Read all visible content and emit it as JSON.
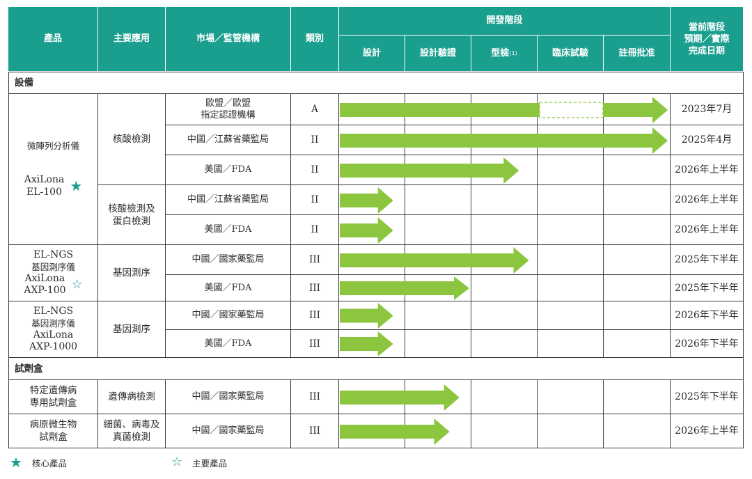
{
  "colors": {
    "header_bg": "#1a9e8e",
    "arrow": "#8cc63f",
    "star": "#1a9e8e",
    "text": "#2b2b2b"
  },
  "header": {
    "product": "產品",
    "application": "主要應用",
    "market": "市場／監管機構",
    "category": "類別",
    "dev_stage": "開發階段",
    "stages": [
      "設計",
      "設計驗證",
      "型檢",
      "臨床試驗",
      "註冊批准"
    ],
    "type_check_note": "(1)",
    "current_stage": "當前階段\n預期／實際\n完成日期"
  },
  "sections": {
    "equipment": "設備",
    "reagents": "試劑盒"
  },
  "products": {
    "p1_line1": "微陣列分析儀",
    "p1_line2": "AxiLona\nEL-100",
    "p1_star": "filled-star",
    "p2_name": "EL-NGS",
    "p2_sub": "基因測序儀",
    "p2_model": "AxiLona\nAXP-100",
    "p2_star": "outline-star",
    "p3_name": "EL-NGS",
    "p3_sub": "基因測序儀",
    "p3_model": "AxiLona\nAXP-1000",
    "p4": "特定遺傳病\n專用試劑盒",
    "p5": "病原微生物\n試劑盒"
  },
  "applications": {
    "a1": "核酸檢測",
    "a2": "核酸檢測及\n蛋白檢測",
    "a3": "基因測序",
    "a4": "基因測序",
    "a5": "遺傳病檢測",
    "a6": "細菌、病毒及\n真菌檢測"
  },
  "rows": [
    {
      "market": "歐盟／歐盟\n指定認證機構",
      "category": "A",
      "date": "2023年7月",
      "stage_progress": 5.0,
      "dashed_stage": 4
    },
    {
      "market": "中國／江蘇省藥監局",
      "category": "II",
      "date": "2025年4月",
      "stage_progress": 5.0
    },
    {
      "market": "美國／FDA",
      "category": "II",
      "date": "2026年上半年",
      "stage_progress": 2.75
    },
    {
      "market": "中國／江蘇省藥監局",
      "category": "II",
      "date": "2026年上半年",
      "stage_progress": 0.85
    },
    {
      "market": "美國／FDA",
      "category": "II",
      "date": "2026年上半年",
      "stage_progress": 0.85
    },
    {
      "market": "中國／國家藥監局",
      "category": "III",
      "date": "2025年下半年",
      "stage_progress": 2.9
    },
    {
      "market": "美國／FDA",
      "category": "III",
      "date": "2025年下半年",
      "stage_progress": 2.0
    },
    {
      "market": "中國／國家藥監局",
      "category": "III",
      "date": "2026年下半年",
      "stage_progress": 0.85
    },
    {
      "market": "美國／FDA",
      "category": "III",
      "date": "2026年下半年",
      "stage_progress": 0.85
    },
    {
      "market": "中國／國家藥監局",
      "category": "III",
      "date": "2025年下半年",
      "stage_progress": 1.85
    },
    {
      "market": "中國／國家藥監局",
      "category": "III",
      "date": "2026年上半年",
      "stage_progress": 1.7
    }
  ],
  "legend": {
    "core": "核心產品",
    "main": "主要產品"
  }
}
